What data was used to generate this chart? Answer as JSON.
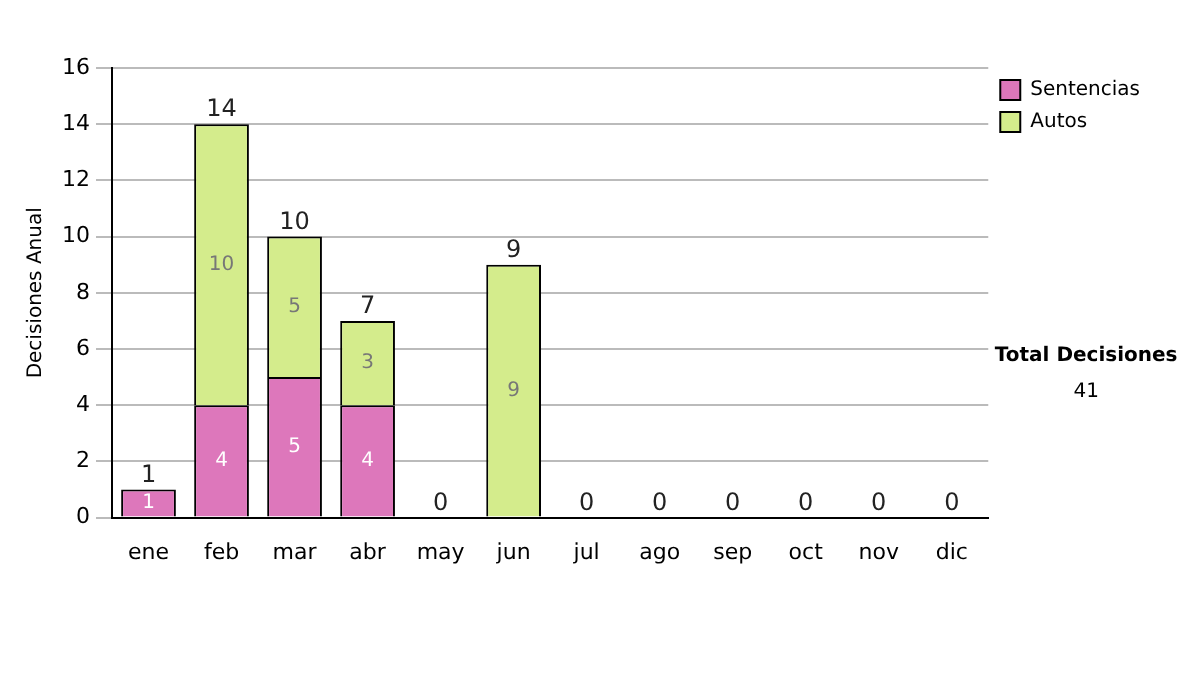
{
  "chart_data": {
    "type": "bar",
    "stacked": true,
    "ylabel": "Decisiones Anual",
    "categories": [
      "ene",
      "feb",
      "mar",
      "abr",
      "may",
      "jun",
      "jul",
      "ago",
      "sep",
      "oct",
      "nov",
      "dic"
    ],
    "series": [
      {
        "name": "Sentencias",
        "color": "#dd77bb",
        "values": [
          1,
          4,
          5,
          4,
          0,
          0,
          0,
          0,
          0,
          0,
          0,
          0
        ],
        "value_labels": [
          "1",
          "4",
          "5",
          "4",
          null,
          null,
          null,
          null,
          null,
          null,
          null,
          null
        ]
      },
      {
        "name": "Autos",
        "color": "#d4ec8c",
        "values": [
          0,
          10,
          5,
          3,
          0,
          9,
          0,
          0,
          0,
          0,
          0,
          0
        ],
        "value_labels": [
          null,
          "10",
          "5",
          "3",
          null,
          "9",
          null,
          null,
          null,
          null,
          null,
          null
        ]
      }
    ],
    "totals": [
      "1",
      "14",
      "10",
      "7",
      "0",
      "9",
      "0",
      "0",
      "0",
      "0",
      "0",
      "0"
    ],
    "ylim": [
      0,
      16
    ],
    "yticks": [
      0,
      2,
      4,
      6,
      8,
      10,
      12,
      14,
      16
    ],
    "grid": "y",
    "legend": "right",
    "annotations": [
      "Total Decisiones",
      "41"
    ]
  }
}
